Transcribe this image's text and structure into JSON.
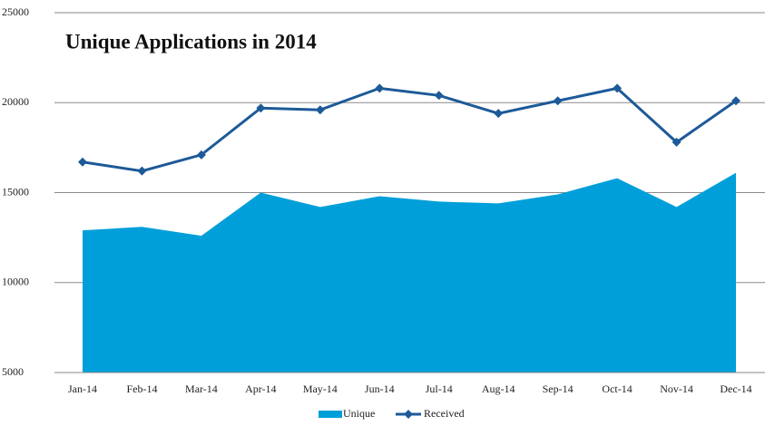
{
  "chart_data": {
    "type": "area-line",
    "title": "Unique Applications in 2014",
    "categories": [
      "Jan-14",
      "Feb-14",
      "Mar-14",
      "Apr-14",
      "May-14",
      "Jun-14",
      "Jul-14",
      "Aug-14",
      "Sep-14",
      "Oct-14",
      "Nov-14",
      "Dec-14"
    ],
    "series": [
      {
        "name": "Unique",
        "color": "#009fd9",
        "kind": "area",
        "values": [
          12900,
          13100,
          12600,
          15000,
          14200,
          14800,
          14500,
          14400,
          14900,
          15800,
          14200,
          16100
        ]
      },
      {
        "name": "Received",
        "color": "#1d5a98",
        "kind": "line",
        "values": [
          16700,
          16200,
          17100,
          19700,
          19600,
          20800,
          20400,
          19400,
          20100,
          20800,
          17800,
          20100
        ]
      }
    ],
    "ylim": [
      5000,
      25000
    ],
    "yticks": [
      5000,
      10000,
      15000,
      20000,
      25000
    ],
    "grid": true,
    "legend": "bottom"
  }
}
